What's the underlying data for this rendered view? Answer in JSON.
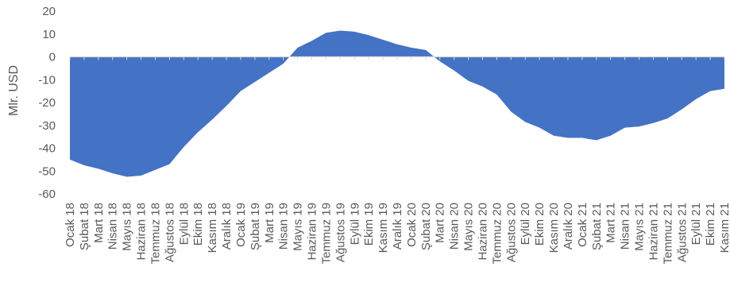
{
  "chart_data": {
    "type": "area",
    "title": "",
    "xlabel": "",
    "ylabel": "Mlr. USD",
    "ylim": [
      -60,
      20
    ],
    "yticks": [
      20,
      10,
      0,
      -10,
      -20,
      -30,
      -40,
      -50,
      -60
    ],
    "grid": false,
    "legend": "none",
    "series_color": "#4472C4",
    "axis_color": "#D9D9D9",
    "text_color": "#595959",
    "categories": [
      "Ocak 18",
      "Şubat 18",
      "Mart 18",
      "Nisan 18",
      "Mayıs 18",
      "Haziran 18",
      "Temmuz 18",
      "Ağustos 18",
      "Eylül 18",
      "Ekim 18",
      "Kasım 18",
      "Aralık 18",
      "Ocak 19",
      "Şubat 19",
      "Mart 19",
      "Nisan 19",
      "Mayıs 19",
      "Haziran 19",
      "Temmuz 19",
      "Ağustos 19",
      "Eylül 19",
      "Ekim 19",
      "Kasım 19",
      "Aralık 19",
      "Ocak 20",
      "Şubat 20",
      "Mart 20",
      "Nisan 20",
      "Mayıs 20",
      "Haziran 20",
      "Temmuz 20",
      "Ağustos 20",
      "Eylül 20",
      "Ekim 20",
      "Kasım 20",
      "Aralık 20",
      "Ocak 21",
      "Şubat 21",
      "Mart 21",
      "Nisan 21",
      "Mayıs 21",
      "Haziran 21",
      "Temmuz 21",
      "Ağustos 21",
      "Eylül 21",
      "Ekim 21",
      "Kasım 21"
    ],
    "series": [
      {
        "values": [
          -45,
          -47.5,
          -49,
          -51,
          -52.5,
          -52,
          -49.5,
          -47,
          -39.5,
          -33,
          -27.5,
          -21.5,
          -15,
          -11,
          -7,
          -3,
          4,
          7,
          10.5,
          11.5,
          11,
          9.5,
          7.5,
          5.5,
          4,
          3,
          -2,
          -6,
          -10.5,
          -13,
          -16.5,
          -24,
          -28.5,
          -31,
          -34.5,
          -35.5,
          -35.5,
          -36.5,
          -34.5,
          -31,
          -30.5,
          -29,
          -27,
          -23,
          -18.5,
          -15,
          -14
        ]
      }
    ]
  }
}
